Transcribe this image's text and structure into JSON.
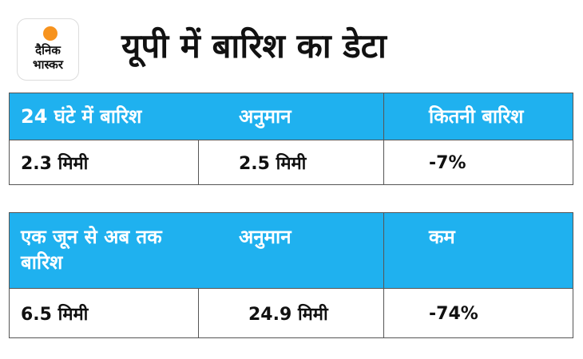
{
  "logo": {
    "text_line1": "दैनिक",
    "text_line2": "भास्कर",
    "accent_color": "#f7931e"
  },
  "title": "यूपी में बारिश का डेटा",
  "colors": {
    "header_bg": "#1fb1ef",
    "header_text": "#ffffff",
    "body_text": "#111111"
  },
  "table1": {
    "headers": [
      "24 घंटे में बारिश",
      "अनुमान",
      "कितनी बारिश"
    ],
    "values": [
      "2.3 मिमी",
      "2.5 मिमी",
      "-7%"
    ]
  },
  "table2": {
    "headers": [
      "एक जून से अब तक बारिश",
      "अनुमान",
      "कम"
    ],
    "values": [
      "6.5 मिमी",
      "24.9 मिमी",
      "-74%"
    ]
  }
}
